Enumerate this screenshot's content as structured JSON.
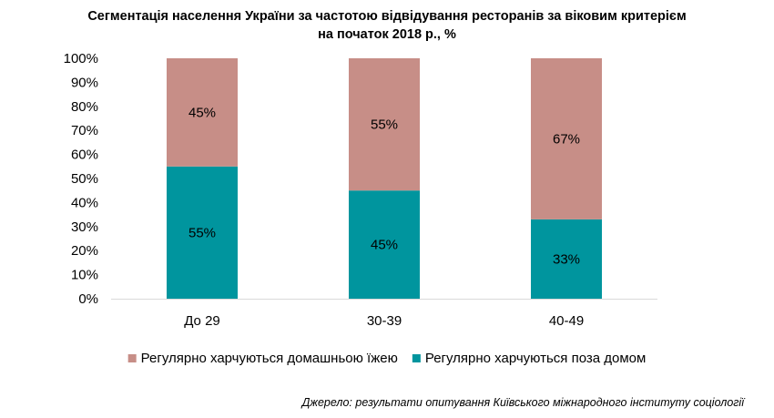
{
  "chart_data": {
    "type": "bar",
    "stacked": true,
    "title_line1": "Сегментація населення України за частотою відвідування ресторанів за віковим критерієм",
    "title_line2": "на початок 2018 р., %",
    "categories": [
      "До 29",
      "30-39",
      "40-49"
    ],
    "series": [
      {
        "name": "Регулярно харчуються поза домом",
        "values": [
          55,
          45,
          33
        ],
        "labels": [
          "55%",
          "45%",
          "33%"
        ],
        "color": "#00959E"
      },
      {
        "name": "Регулярно харчуються домашньою їжею",
        "values": [
          45,
          55,
          67
        ],
        "labels": [
          "45%",
          "55%",
          "67%"
        ],
        "color": "#C78E87"
      }
    ],
    "ylim": [
      0,
      100
    ],
    "yticks": [
      "0%",
      "10%",
      "20%",
      "30%",
      "40%",
      "50%",
      "60%",
      "70%",
      "80%",
      "90%",
      "100%"
    ],
    "grid": false,
    "legend_position": "bottom",
    "legend_order": [
      1,
      0
    ],
    "source": "Джерело: результати опитування Київського міжнародного інституту соціології"
  }
}
